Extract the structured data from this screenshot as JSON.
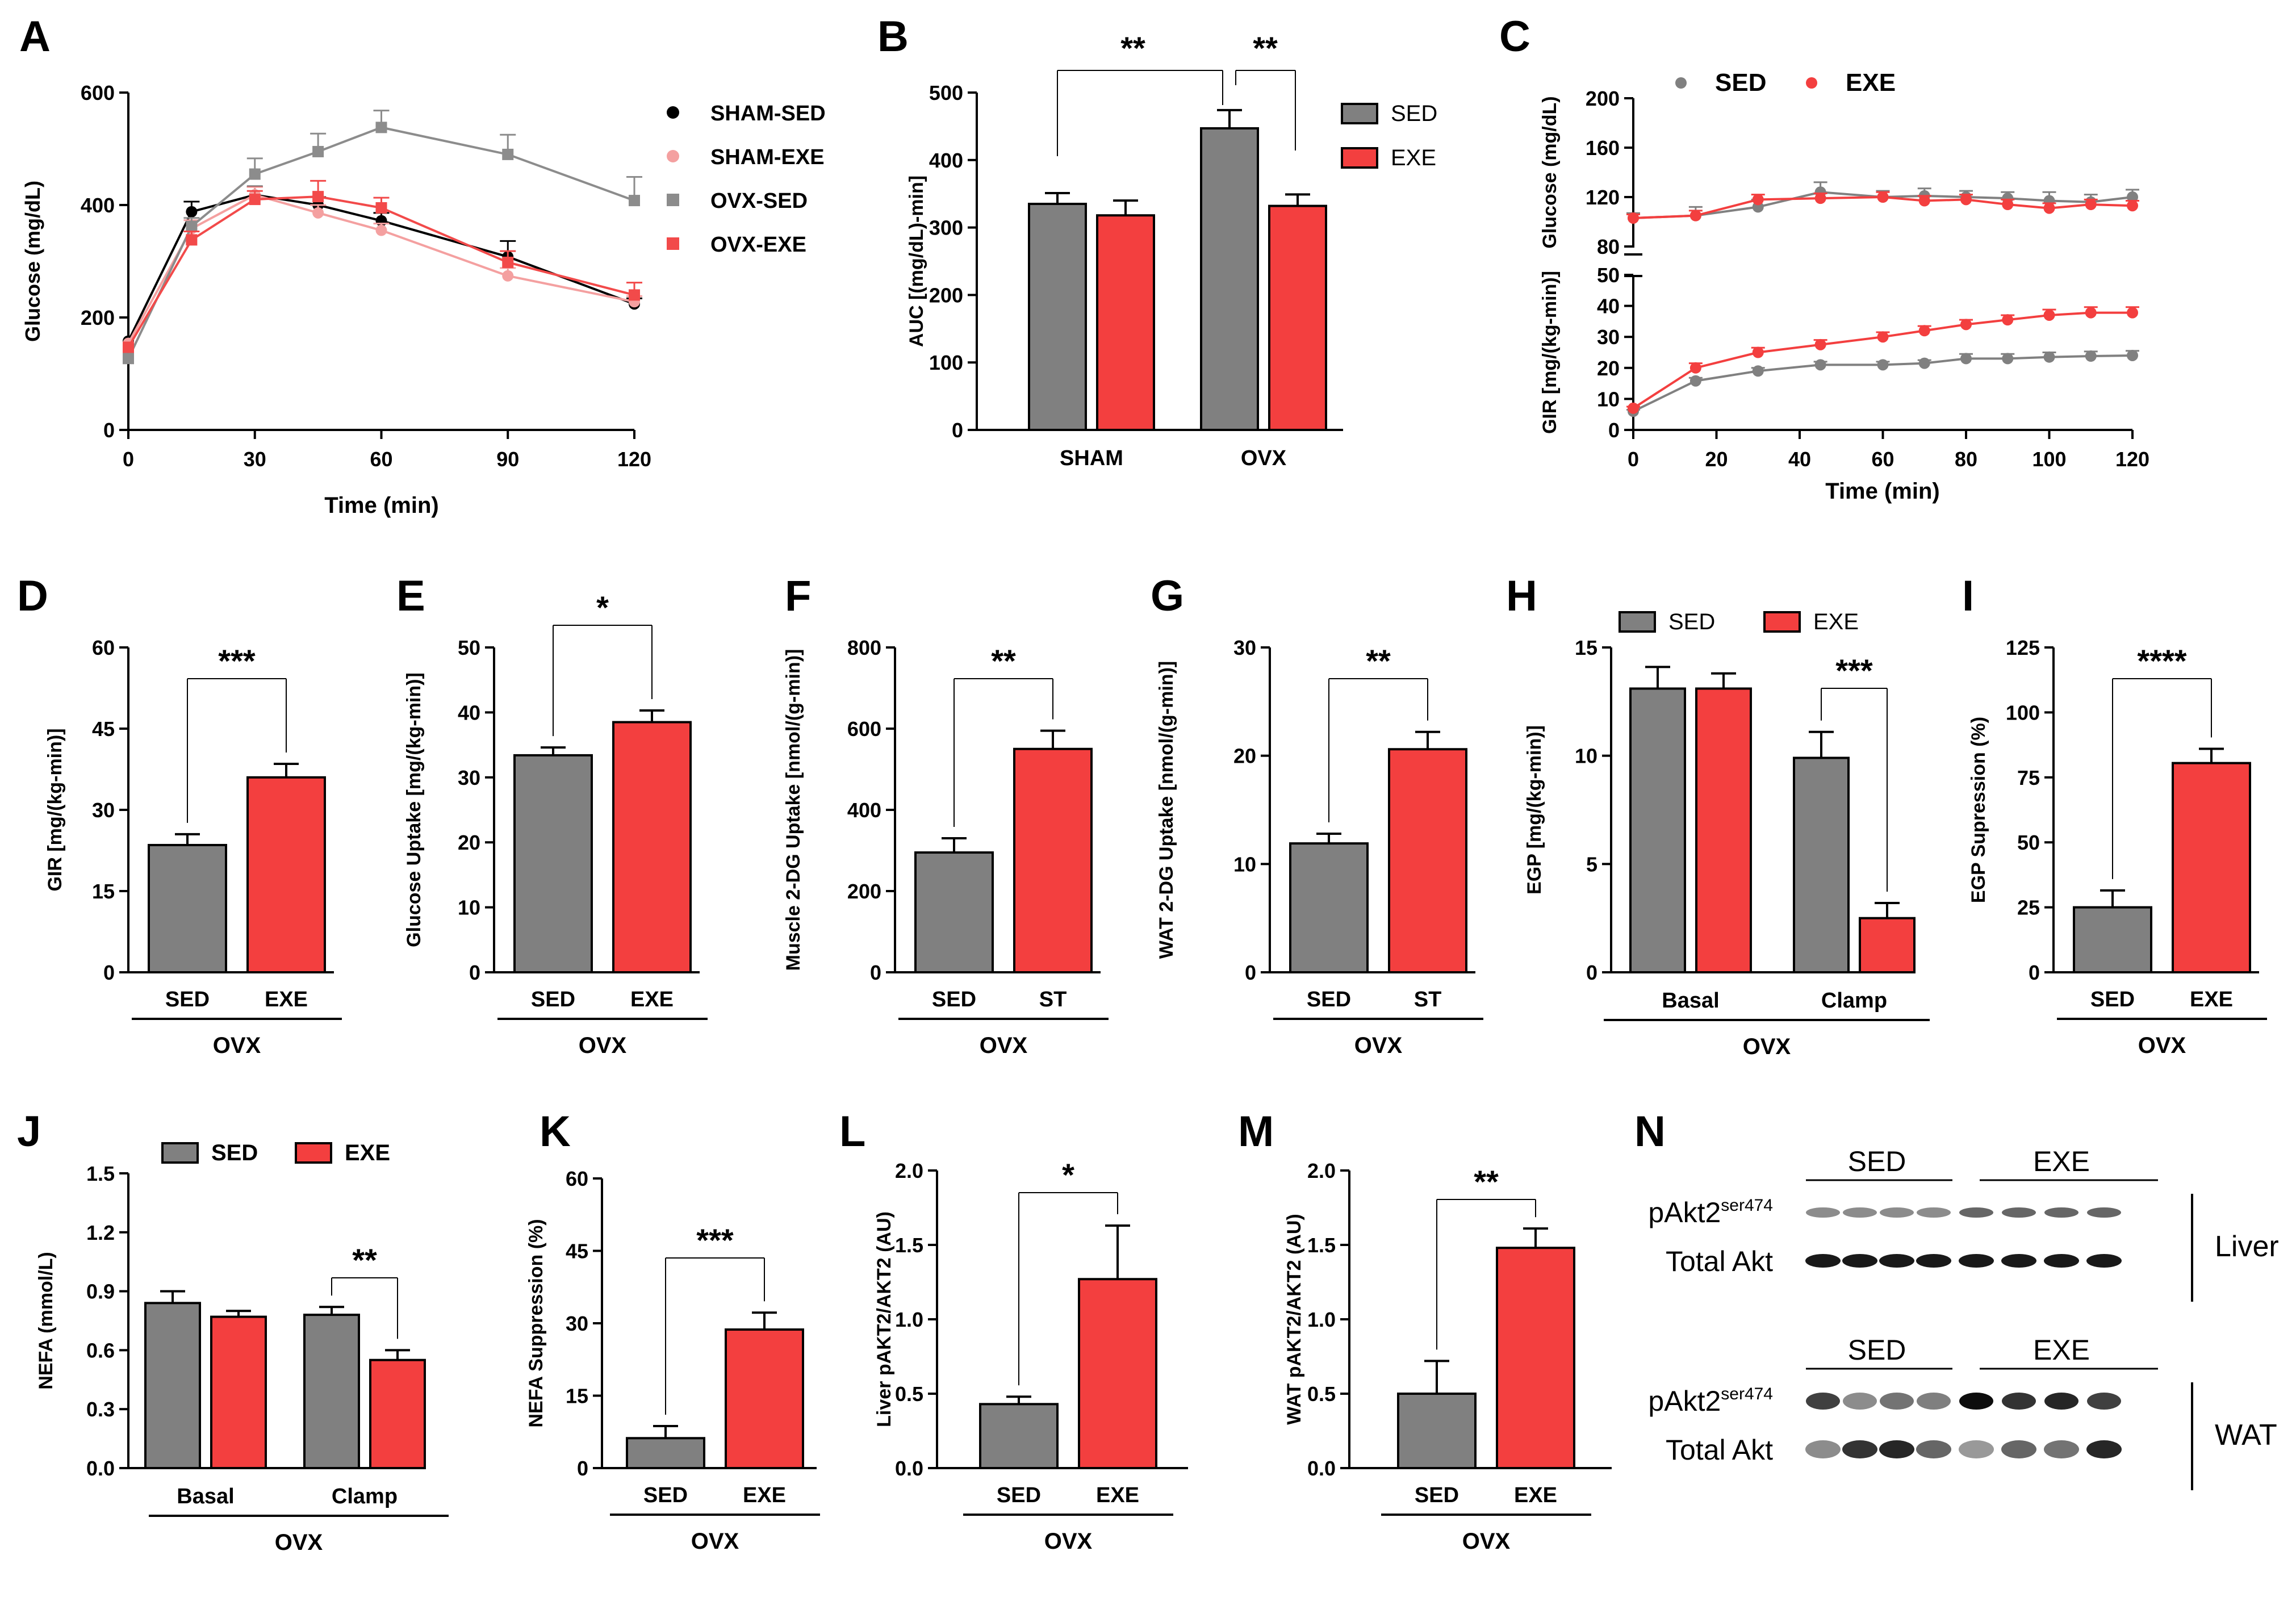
{
  "figure": {
    "panel_letters": [
      "A",
      "B",
      "C",
      "D",
      "E",
      "F",
      "G",
      "H",
      "I",
      "J",
      "K",
      "L",
      "M",
      "N"
    ]
  },
  "colors": {
    "sed": "#808080",
    "sham_sed": "#000000",
    "sham_exe": "#F4A0A0",
    "ovx_sed": "#8C8C8C",
    "ovx_exe": "#F24A4A",
    "exe": "#F33F3F",
    "axis": "#000000"
  },
  "chart_data": [
    {
      "panel": "A",
      "type": "line",
      "title": "",
      "xlabel": "Time (min)",
      "ylabel": "Glucose (mg/dL)",
      "xlim": [
        0,
        120
      ],
      "ylim": [
        0,
        600
      ],
      "xticks": [
        0,
        30,
        60,
        90,
        120
      ],
      "yticks": [
        0,
        200,
        400,
        600
      ],
      "x": [
        0,
        15,
        30,
        45,
        60,
        90,
        120
      ],
      "series": [
        {
          "name": "SHAM-SED",
          "values": [
            158,
            388,
            418,
            400,
            372,
            308,
            224
          ],
          "errors": [
            0,
            18,
            15,
            14,
            14,
            28,
            10
          ],
          "color": "#000000",
          "marker": "circle"
        },
        {
          "name": "SHAM-EXE",
          "values": [
            154,
            358,
            418,
            386,
            355,
            274,
            228
          ],
          "errors": [
            0,
            15,
            14,
            14,
            12,
            14,
            10
          ],
          "color": "#F4A0A0",
          "marker": "circle"
        },
        {
          "name": "OVX-SED",
          "values": [
            127,
            362,
            455,
            495,
            538,
            490,
            408
          ],
          "errors": [
            0,
            15,
            28,
            32,
            30,
            35,
            42
          ],
          "color": "#8C8C8C",
          "marker": "square"
        },
        {
          "name": "OVX-EXE",
          "values": [
            147,
            338,
            410,
            415,
            395,
            298,
            240
          ],
          "errors": [
            0,
            15,
            15,
            28,
            18,
            20,
            22
          ],
          "color": "#F24A4A",
          "marker": "square"
        }
      ]
    },
    {
      "panel": "B",
      "type": "bar",
      "ylabel": "AUC [(mg/dL)-min]",
      "ylim": [
        0,
        500
      ],
      "yticks": [
        0,
        100,
        200,
        300,
        400,
        500
      ],
      "categories": [
        "SHAM",
        "OVX"
      ],
      "legend": [
        "SED",
        "EXE"
      ],
      "series": [
        {
          "name": "SED",
          "values": [
            335,
            447
          ],
          "errors": [
            16,
            27
          ]
        },
        {
          "name": "EXE",
          "values": [
            318,
            332
          ],
          "errors": [
            22,
            17
          ]
        }
      ],
      "annotations": [
        "**",
        "**"
      ]
    },
    {
      "panel": "C",
      "type": "line",
      "xlabel": "Time (min)",
      "legend": [
        "SED",
        "EXE"
      ],
      "xticks": [
        0,
        20,
        40,
        60,
        80,
        100,
        120
      ],
      "x": [
        0,
        15,
        30,
        45,
        60,
        70,
        80,
        90,
        100,
        110,
        120
      ],
      "top": {
        "ylabel": "Glucose (mg/dL)",
        "ylim": [
          80,
          200
        ],
        "yticks": [
          80,
          120,
          160,
          200
        ],
        "series": [
          {
            "name": "SED",
            "values": [
              103,
              105,
              112,
              124,
              120,
              121,
              120,
              119,
              117,
              116,
              120
            ],
            "errors": [
              4,
              7,
              6,
              8,
              5,
              6,
              5,
              5,
              7,
              6,
              6
            ]
          },
          {
            "name": "EXE",
            "values": [
              103,
              105,
              118,
              119,
              120,
              117,
              118,
              114,
              111,
              114,
              113
            ],
            "errors": [
              3,
              4,
              4,
              4,
              4,
              4,
              4,
              4,
              4,
              4,
              4
            ]
          }
        ]
      },
      "bottom": {
        "ylabel": "GIR [mg/(kg-min)]",
        "ylim": [
          0,
          50
        ],
        "yticks": [
          0,
          10,
          20,
          30,
          40,
          50
        ],
        "series": [
          {
            "name": "SED",
            "values": [
              6,
              15.8,
              19,
              21,
              21,
              21.5,
              23,
              23,
              23.5,
              23.8,
              24
            ],
            "errors": [
              0.5,
              1,
              1,
              1,
              1,
              1,
              1.5,
              1.5,
              1.5,
              1.5,
              1.5
            ]
          },
          {
            "name": "EXE",
            "values": [
              7,
              20,
              25,
              27.5,
              30,
              32,
              34,
              35.5,
              37,
              37.8,
              37.8
            ],
            "errors": [
              0.5,
              1.5,
              1.5,
              1.5,
              1.5,
              1.5,
              1.5,
              1.5,
              1.8,
              1.8,
              1.8
            ]
          }
        ]
      }
    },
    {
      "panel": "D",
      "type": "bar",
      "ylabel": "GIR [mg/(kg-min)]",
      "ylim": [
        0,
        60
      ],
      "yticks": [
        0,
        15,
        30,
        45,
        60
      ],
      "categories": [
        "SED",
        "EXE"
      ],
      "group": "OVX",
      "values": [
        23.5,
        36
      ],
      "errors": [
        2,
        2.5
      ],
      "annotation": "***"
    },
    {
      "panel": "E",
      "type": "bar",
      "ylabel": "Glucose Uptake [mg/(kg-min)]",
      "ylim": [
        0,
        50
      ],
      "yticks": [
        0,
        10,
        20,
        30,
        40,
        50
      ],
      "categories": [
        "SED",
        "EXE"
      ],
      "group": "OVX",
      "values": [
        33.4,
        38.5
      ],
      "errors": [
        1.2,
        1.8
      ],
      "annotation": "*"
    },
    {
      "panel": "F",
      "type": "bar",
      "ylabel": "Muscle 2-DG Uptake [nmol/(g-min)]",
      "ylim": [
        0,
        800
      ],
      "yticks": [
        0,
        200,
        400,
        600,
        800
      ],
      "categories": [
        "SED",
        "ST"
      ],
      "group": "OVX",
      "values": [
        295,
        550
      ],
      "errors": [
        35,
        45
      ],
      "annotation": "**"
    },
    {
      "panel": "G",
      "type": "bar",
      "ylabel": "WAT 2-DG Uptake [nmol/(g-min)]",
      "ylim": [
        0,
        30
      ],
      "yticks": [
        0,
        10,
        20,
        30
      ],
      "categories": [
        "SED",
        "ST"
      ],
      "group": "OVX",
      "values": [
        11.9,
        20.6
      ],
      "errors": [
        0.9,
        1.6
      ],
      "annotation": "**"
    },
    {
      "panel": "H",
      "type": "bar",
      "ylabel": "EGP [mg/(kg-min)]",
      "ylim": [
        0,
        15
      ],
      "yticks": [
        0,
        5,
        10,
        15
      ],
      "categories": [
        "Basal",
        "Clamp"
      ],
      "group": "OVX",
      "legend": [
        "SED",
        "EXE"
      ],
      "series": [
        {
          "name": "SED",
          "values": [
            13.1,
            9.9
          ],
          "errors": [
            1,
            1.2
          ]
        },
        {
          "name": "EXE",
          "values": [
            13.1,
            2.5
          ],
          "errors": [
            0.7,
            0.7
          ]
        }
      ],
      "annotation": "***"
    },
    {
      "panel": "I",
      "type": "bar",
      "ylabel": "EGP Supression (%)",
      "ylim": [
        0,
        125
      ],
      "yticks": [
        0,
        25,
        50,
        75,
        100,
        125
      ],
      "categories": [
        "SED",
        "EXE"
      ],
      "group": "OVX",
      "values": [
        25,
        80.5
      ],
      "errors": [
        6.5,
        5.5
      ],
      "annotation": "****"
    },
    {
      "panel": "J",
      "type": "bar",
      "ylabel": "NEFA (mmol/L)",
      "ylim": [
        0,
        1.5
      ],
      "yticks": [
        "0.0",
        "0.3",
        "0.6",
        "0.9",
        "1.2",
        "1.5"
      ],
      "categories": [
        "Basal",
        "Clamp"
      ],
      "group": "OVX",
      "legend": [
        "SED",
        "EXE"
      ],
      "series": [
        {
          "name": "SED",
          "values": [
            0.84,
            0.78
          ],
          "errors": [
            0.06,
            0.04
          ]
        },
        {
          "name": "EXE",
          "values": [
            0.77,
            0.55
          ],
          "errors": [
            0.03,
            0.05
          ]
        }
      ],
      "annotation": "**"
    },
    {
      "panel": "K",
      "type": "bar",
      "ylabel": "NEFA Suppression (%)",
      "ylim": [
        0,
        60
      ],
      "yticks": [
        0,
        15,
        30,
        45,
        60
      ],
      "categories": [
        "SED",
        "EXE"
      ],
      "group": "OVX",
      "values": [
        6.2,
        28.7
      ],
      "errors": [
        2.5,
        3.5
      ],
      "annotation": "***"
    },
    {
      "panel": "L",
      "type": "bar",
      "ylabel": "Liver pAKT2/AKT2 (AU)",
      "ylim": [
        0,
        2
      ],
      "yticks": [
        "0.0",
        "0.5",
        "1.0",
        "1.5",
        "2.0"
      ],
      "categories": [
        "SED",
        "EXE"
      ],
      "group": "OVX",
      "values": [
        0.43,
        1.27
      ],
      "errors": [
        0.05,
        0.36
      ],
      "annotation": "*"
    },
    {
      "panel": "M",
      "type": "bar",
      "ylabel": "WAT pAKT2/AKT2 (AU)",
      "ylim": [
        0,
        2
      ],
      "yticks": [
        "0.0",
        "0.5",
        "1.0",
        "1.5",
        "2.0"
      ],
      "categories": [
        "SED",
        "EXE"
      ],
      "group": "OVX",
      "values": [
        0.5,
        1.48
      ],
      "errors": [
        0.22,
        0.13
      ],
      "annotation": "**"
    }
  ],
  "blot": {
    "panel": "N",
    "groups": [
      "SED",
      "EXE"
    ],
    "rows": [
      {
        "tissue": "Liver",
        "band1": "pAkt2",
        "band1_sup": "ser474",
        "band2": "Total Akt"
      },
      {
        "tissue": "WAT",
        "band1": "pAkt2",
        "band1_sup": "ser474",
        "band2": "Total Akt"
      }
    ]
  }
}
